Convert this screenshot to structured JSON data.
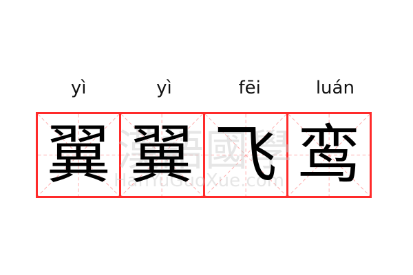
{
  "pinyin": [
    "yì",
    "yì",
    "fēi",
    "luán"
  ],
  "characters": [
    "翼",
    "翼",
    "飞",
    "鸾"
  ],
  "watermark": {
    "chinese": "漢語國學",
    "latin": "HanYuGuoXue.com"
  },
  "colors": {
    "grid_border": "#ff2a2a",
    "guide_lines": "#ffaaaa",
    "text": "#000000"
  }
}
